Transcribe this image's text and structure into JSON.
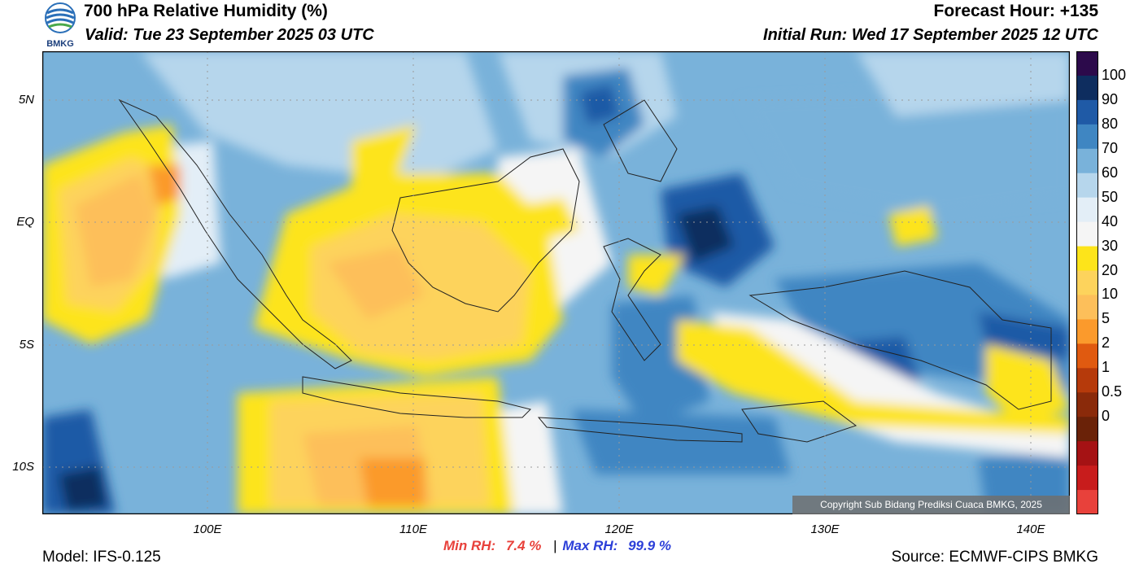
{
  "header": {
    "title": "700 hPa Relative Humidity (%)",
    "valid": "Valid: Tue 23 September 2025 03 UTC",
    "forecast_hour": "Forecast Hour: +135",
    "initial_run": "Initial Run: Wed 17 September 2025 12 UTC",
    "logo_text": "BMKG"
  },
  "axes": {
    "lat_labels": [
      "5N",
      "EQ",
      "5S",
      "10S"
    ],
    "lon_labels": [
      "100E",
      "110E",
      "120E",
      "130E",
      "140E"
    ]
  },
  "stats": {
    "min_label": "Min RH:",
    "min_value": "7.4 %",
    "separator": "|",
    "max_label": "Max RH:",
    "max_value": "99.9 %"
  },
  "footer": {
    "model": "Model: IFS-0.125",
    "source": "Source: ECMWF-CIPS BMKG",
    "copyright": "Copyright Sub Bidang Prediksi Cuaca BMKG, 2025"
  },
  "colorbar": {
    "labels": [
      "100",
      "90",
      "80",
      "70",
      "60",
      "50",
      "40",
      "30",
      "20",
      "10",
      "5",
      "2",
      "1",
      "0.5",
      "0"
    ],
    "colors": [
      "#2c0a4b",
      "#0e2d5f",
      "#1f5aa6",
      "#3f86c2",
      "#79b2da",
      "#b6d6ec",
      "#e3eef7",
      "#f5f5f5",
      "#fde41a",
      "#fdd35c",
      "#fdbf5a",
      "#fb9a2c",
      "#e05a10",
      "#b63a0b",
      "#8a2a0a",
      "#6a2208",
      "#a51214",
      "#c81c1c",
      "#e8413b"
    ]
  }
}
